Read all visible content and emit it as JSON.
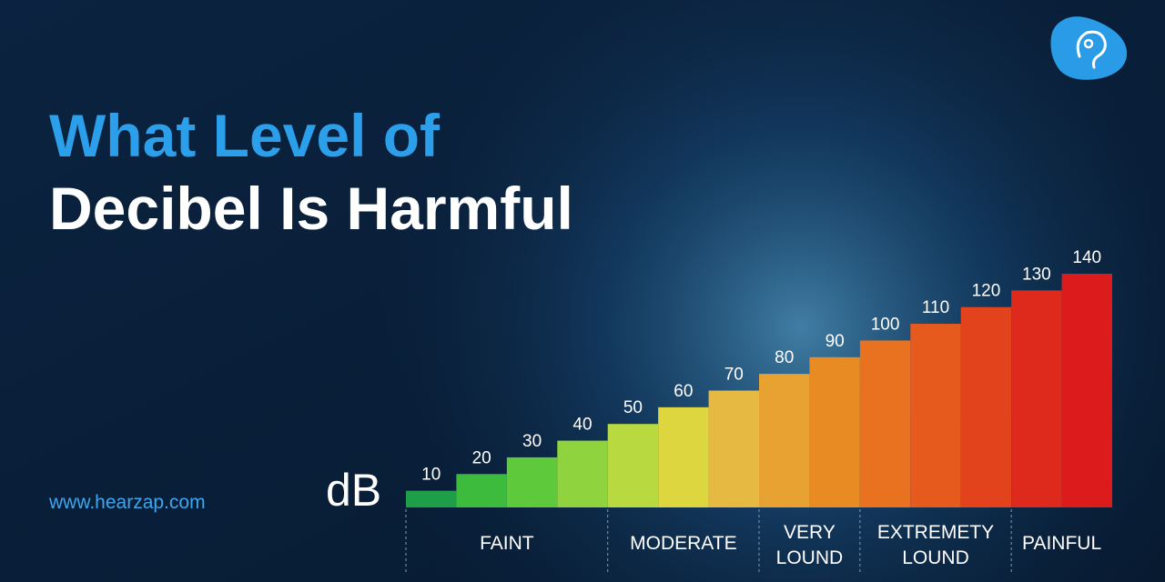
{
  "chart_data": {
    "type": "bar",
    "title": [
      "What Level of",
      "Decibel Is Harmful"
    ],
    "y_label": "dB",
    "url": "www.hearzap.com",
    "ylim": [
      0,
      140
    ],
    "groups": [
      {
        "label": [
          "FAINT"
        ],
        "values": [
          10,
          20,
          30,
          40
        ],
        "colors": [
          "#1e9e48",
          "#3dbb3d",
          "#5ec93a",
          "#8fd43e"
        ]
      },
      {
        "label": [
          "MODERATE"
        ],
        "values": [
          50,
          60,
          70
        ],
        "colors": [
          "#b8da40",
          "#ddd63e",
          "#e6b942"
        ]
      },
      {
        "label": [
          "VERY",
          "LOUND"
        ],
        "values": [
          80,
          90
        ],
        "colors": [
          "#e8a232",
          "#e88b22"
        ]
      },
      {
        "label": [
          "EXTREMETY",
          "LOUND"
        ],
        "values": [
          100,
          110,
          120
        ],
        "colors": [
          "#e87220",
          "#e65a1e",
          "#e2421c"
        ]
      },
      {
        "label": [
          "PAINFUL"
        ],
        "values": [
          130,
          140
        ],
        "colors": [
          "#de2a1c",
          "#dc1c1c"
        ]
      }
    ]
  }
}
